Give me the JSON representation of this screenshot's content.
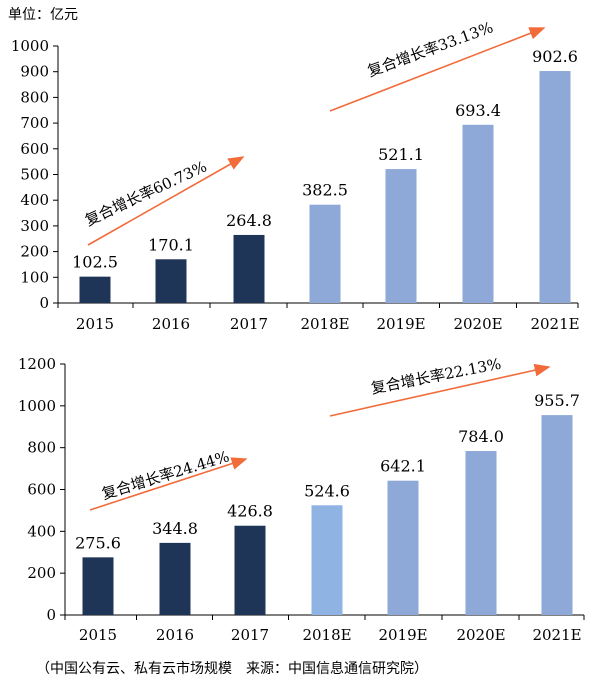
{
  "unit_label": "单位：亿元",
  "source_note": "（中国公有云、私有云市场规模　来源：中国信息通信研究院）",
  "colors": {
    "actual": "#1f3557",
    "forecast": "#8ea9d7",
    "forecast_2018_second": "#8fb3e3",
    "arrow": "#f26b3a"
  },
  "chart_data": [
    {
      "type": "bar",
      "categories": [
        "2015",
        "2016",
        "2017",
        "2018E",
        "2019E",
        "2020E",
        "2021E"
      ],
      "values": [
        102.5,
        170.1,
        264.8,
        382.5,
        521.1,
        693.4,
        902.6
      ],
      "value_labels": [
        "102.5",
        "170.1",
        "264.8",
        "382.5",
        "521.1",
        "693.4",
        "902.6"
      ],
      "ylim": [
        0,
        1000
      ],
      "yticks": [
        "0",
        "100",
        "200",
        "300",
        "400",
        "500",
        "600",
        "700",
        "800",
        "900",
        "1000"
      ],
      "forecast_from_index": 3,
      "annotations": [
        {
          "text": "复合增长率60.73%",
          "from_index": 0,
          "to_index": 2
        },
        {
          "text": "复合增长率33.13%",
          "from_index": 3,
          "to_index": 6
        }
      ]
    },
    {
      "type": "bar",
      "categories": [
        "2015",
        "2016",
        "2017",
        "2018E",
        "2019E",
        "2020E",
        "2021E"
      ],
      "values": [
        275.6,
        344.8,
        426.8,
        524.6,
        642.1,
        784.0,
        955.7
      ],
      "value_labels": [
        "275.6",
        "344.8",
        "426.8",
        "524.6",
        "642.1",
        "784.0",
        "955.7"
      ],
      "ylim": [
        0,
        1200
      ],
      "yticks": [
        "0",
        "200",
        "400",
        "600",
        "800",
        "1000",
        "1200"
      ],
      "forecast_from_index": 3,
      "annotations": [
        {
          "text": "复合增长率24.44%",
          "from_index": 0,
          "to_index": 2
        },
        {
          "text": "复合增长率22.13%",
          "from_index": 3,
          "to_index": 6
        }
      ]
    }
  ]
}
